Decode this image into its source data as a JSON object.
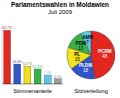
{
  "chart_data": [
    {
      "type": "bar",
      "title": "Parlamentswahlen in Moldawien",
      "subtitle": "Juli 2009",
      "x_label": "Stimmenanteile",
      "categories": [
        null,
        null,
        null,
        null,
        null,
        null
      ],
      "values": [
        44.7,
        16.6,
        14.7,
        12.5,
        7.4,
        4.3
      ],
      "value_labels": [
        "44,7%",
        "16,6%",
        "14,7%",
        "12,5%",
        "7,4%",
        "4,3%"
      ],
      "colors": [
        "#e3261e",
        "#2f55c8",
        "#f2e21a",
        "#37b24a",
        "#5cc8e8",
        "#9a9a9a"
      ],
      "ylim": [
        0,
        50
      ],
      "data_labels": true,
      "tick_labels": false
    },
    {
      "type": "pie",
      "title": "Sitzverteilung",
      "categories": [
        "PCRM",
        "PLDM",
        "PL",
        "PDM",
        "AMN"
      ],
      "values": [
        48,
        18,
        15,
        13,
        7
      ],
      "colors": [
        "#e3261e",
        "#2f55c8",
        "#f2e21a",
        "#37b24a",
        "#5cc8e8"
      ],
      "data_labels": true
    }
  ]
}
